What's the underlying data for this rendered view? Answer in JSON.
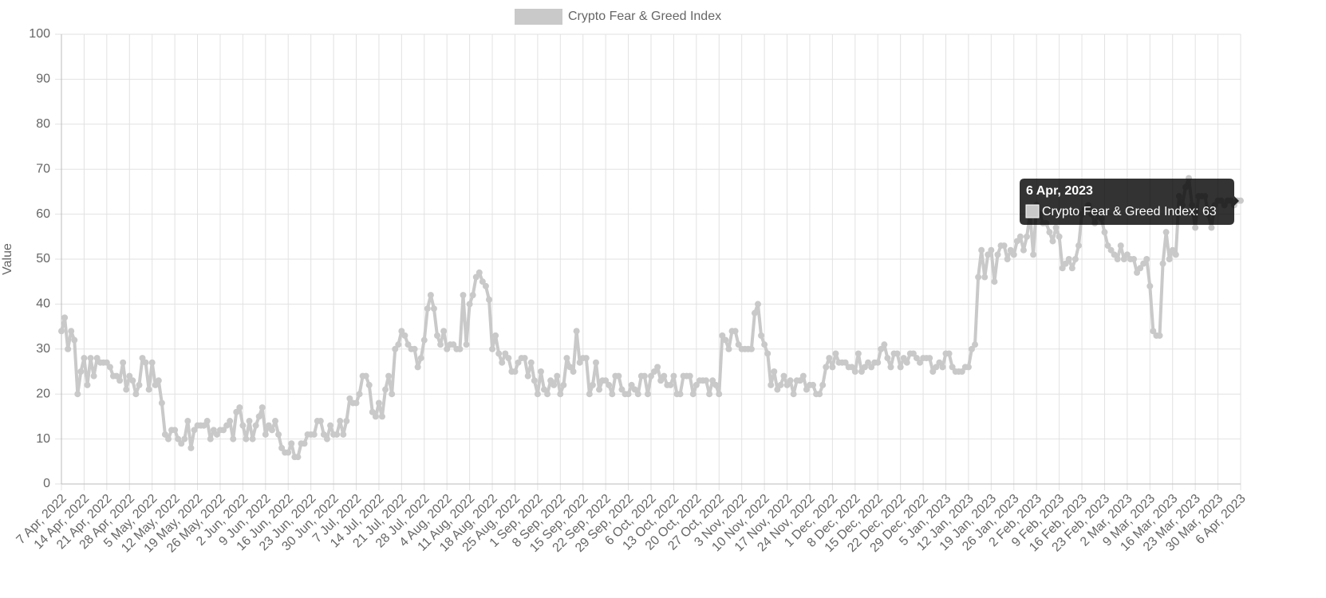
{
  "chart_data": {
    "type": "line",
    "y_label": "Value",
    "categories": [
      "7 Apr, 2022",
      null,
      null,
      null,
      null,
      null,
      null,
      "14 Apr, 2022",
      null,
      null,
      null,
      null,
      null,
      null,
      "21 Apr, 2022",
      null,
      null,
      null,
      null,
      null,
      null,
      "28 Apr, 2022",
      null,
      null,
      null,
      null,
      null,
      null,
      "5 May, 2022",
      null,
      null,
      null,
      null,
      null,
      null,
      "12 May, 2022",
      null,
      null,
      null,
      null,
      null,
      null,
      "19 May, 2022",
      null,
      null,
      null,
      null,
      null,
      null,
      "26 May, 2022",
      null,
      null,
      null,
      null,
      null,
      null,
      "2 Jun, 2022",
      null,
      null,
      null,
      null,
      null,
      null,
      "9 Jun, 2022",
      null,
      null,
      null,
      null,
      null,
      null,
      "16 Jun, 2022",
      null,
      null,
      null,
      null,
      null,
      null,
      "23 Jun, 2022",
      null,
      null,
      null,
      null,
      null,
      null,
      "30 Jun, 2022",
      null,
      null,
      null,
      null,
      null,
      null,
      "7 Jul, 2022",
      null,
      null,
      null,
      null,
      null,
      null,
      "14 Jul, 2022",
      null,
      null,
      null,
      null,
      null,
      null,
      "21 Jul, 2022",
      null,
      null,
      null,
      null,
      null,
      null,
      "28 Jul, 2022",
      null,
      null,
      null,
      null,
      null,
      null,
      "4 Aug, 2022",
      null,
      null,
      null,
      null,
      null,
      null,
      "11 Aug, 2022",
      null,
      null,
      null,
      null,
      null,
      null,
      "18 Aug, 2022",
      null,
      null,
      null,
      null,
      null,
      null,
      "25 Aug, 2022",
      null,
      null,
      null,
      null,
      null,
      null,
      "1 Sep, 2022",
      null,
      null,
      null,
      null,
      null,
      null,
      "8 Sep, 2022",
      null,
      null,
      null,
      null,
      null,
      null,
      "15 Sep, 2022",
      null,
      null,
      null,
      null,
      null,
      null,
      "22 Sep, 2022",
      null,
      null,
      null,
      null,
      null,
      null,
      "29 Sep, 2022",
      null,
      null,
      null,
      null,
      null,
      null,
      "6 Oct, 2022",
      null,
      null,
      null,
      null,
      null,
      null,
      "13 Oct, 2022",
      null,
      null,
      null,
      null,
      null,
      null,
      "20 Oct, 2022",
      null,
      null,
      null,
      null,
      null,
      null,
      "27 Oct, 2022",
      null,
      null,
      null,
      null,
      null,
      null,
      "3 Nov, 2022",
      null,
      null,
      null,
      null,
      null,
      null,
      "10 Nov, 2022",
      null,
      null,
      null,
      null,
      null,
      null,
      "17 Nov, 2022",
      null,
      null,
      null,
      null,
      null,
      null,
      "24 Nov, 2022",
      null,
      null,
      null,
      null,
      null,
      null,
      "1 Dec, 2022",
      null,
      null,
      null,
      null,
      null,
      null,
      "8 Dec, 2022",
      null,
      null,
      null,
      null,
      null,
      null,
      "15 Dec, 2022",
      null,
      null,
      null,
      null,
      null,
      null,
      "22 Dec, 2022",
      null,
      null,
      null,
      null,
      null,
      null,
      "29 Dec, 2022",
      null,
      null,
      null,
      null,
      null,
      null,
      "5 Jan, 2023",
      null,
      null,
      null,
      null,
      null,
      null,
      "12 Jan, 2023",
      null,
      null,
      null,
      null,
      null,
      null,
      "19 Jan, 2023",
      null,
      null,
      null,
      null,
      null,
      null,
      "26 Jan, 2023",
      null,
      null,
      null,
      null,
      null,
      null,
      "2 Feb, 2023",
      null,
      null,
      null,
      null,
      null,
      null,
      "9 Feb, 2023",
      null,
      null,
      null,
      null,
      null,
      null,
      "16 Feb, 2023",
      null,
      null,
      null,
      null,
      null,
      null,
      "23 Feb, 2023",
      null,
      null,
      null,
      null,
      null,
      null,
      "2 Mar, 2023",
      null,
      null,
      null,
      null,
      null,
      null,
      "9 Mar, 2023",
      null,
      null,
      null,
      null,
      null,
      null,
      "16 Mar, 2023",
      null,
      null,
      null,
      null,
      null,
      null,
      "23 Mar, 2023",
      null,
      null,
      null,
      null,
      null,
      null,
      "30 Mar, 2023",
      null,
      null,
      null,
      null,
      null,
      null,
      "6 Apr, 2023"
    ],
    "series": [
      {
        "name": "Crypto Fear & Greed Index",
        "color": "#c9c9c9",
        "values": [
          34,
          37,
          30,
          34,
          32,
          20,
          25,
          28,
          22,
          28,
          24,
          28,
          27,
          27,
          27,
          26,
          24,
          24,
          23,
          27,
          21,
          24,
          23,
          20,
          22,
          28,
          27,
          21,
          27,
          22,
          23,
          18,
          11,
          10,
          12,
          12,
          10,
          9,
          10,
          14,
          8,
          12,
          13,
          13,
          13,
          14,
          10,
          12,
          11,
          12,
          12,
          13,
          14,
          10,
          16,
          17,
          13,
          10,
          14,
          10,
          13,
          15,
          17,
          11,
          13,
          12,
          14,
          11,
          8,
          7,
          7,
          9,
          6,
          6,
          9,
          9,
          11,
          11,
          11,
          14,
          14,
          11,
          10,
          13,
          11,
          11,
          14,
          11,
          14,
          19,
          18,
          18,
          20,
          24,
          24,
          22,
          16,
          15,
          18,
          15,
          21,
          24,
          20,
          30,
          31,
          34,
          33,
          31,
          30,
          30,
          26,
          28,
          32,
          39,
          42,
          39,
          33,
          31,
          34,
          30,
          31,
          31,
          30,
          30,
          42,
          31,
          40,
          42,
          46,
          47,
          45,
          44,
          41,
          30,
          33,
          29,
          27,
          29,
          28,
          25,
          25,
          27,
          28,
          28,
          24,
          27,
          23,
          20,
          25,
          21,
          20,
          23,
          22,
          24,
          20,
          22,
          28,
          26,
          25,
          34,
          27,
          28,
          28,
          20,
          22,
          27,
          21,
          23,
          23,
          22,
          20,
          24,
          24,
          21,
          20,
          20,
          22,
          21,
          20,
          24,
          24,
          20,
          24,
          25,
          26,
          23,
          24,
          22,
          22,
          24,
          20,
          20,
          24,
          24,
          24,
          20,
          22,
          23,
          23,
          23,
          20,
          23,
          22,
          20,
          33,
          32,
          30,
          34,
          34,
          31,
          30,
          30,
          30,
          30,
          38,
          40,
          33,
          31,
          29,
          22,
          25,
          21,
          22,
          24,
          22,
          23,
          20,
          23,
          23,
          24,
          21,
          22,
          22,
          20,
          20,
          22,
          26,
          28,
          26,
          29,
          27,
          27,
          27,
          26,
          26,
          25,
          29,
          25,
          26,
          27,
          26,
          27,
          27,
          30,
          31,
          28,
          26,
          29,
          29,
          26,
          28,
          27,
          29,
          29,
          28,
          27,
          28,
          28,
          28,
          25,
          26,
          27,
          26,
          29,
          29,
          26,
          25,
          25,
          25,
          26,
          26,
          30,
          31,
          46,
          52,
          46,
          51,
          52,
          45,
          51,
          53,
          53,
          50,
          52,
          51,
          54,
          55,
          52,
          55,
          60,
          51,
          62,
          60,
          58,
          58,
          56,
          54,
          57,
          55,
          48,
          49,
          50,
          48,
          50,
          53,
          60,
          61,
          62,
          60,
          58,
          60,
          59,
          56,
          53,
          52,
          51,
          50,
          53,
          50,
          51,
          50,
          50,
          47,
          48,
          49,
          50,
          44,
          34,
          33,
          33,
          49,
          56,
          50,
          52,
          51,
          64,
          62,
          66,
          68,
          62,
          57,
          64,
          64,
          64,
          60,
          57,
          62,
          63,
          63,
          62,
          63,
          63,
          62,
          63,
          63
        ]
      }
    ],
    "ylim": [
      0,
      100
    ],
    "yticks": [
      0,
      10,
      20,
      30,
      40,
      50,
      60,
      70,
      80,
      90,
      100
    ],
    "grid": true,
    "legend": "top",
    "tooltip": {
      "title": "6 Apr, 2023",
      "label": "Crypto Fear & Greed Index: 63"
    }
  }
}
